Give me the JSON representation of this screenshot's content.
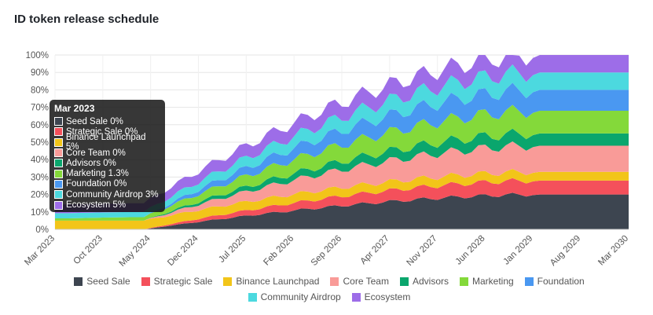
{
  "title": "ID token release schedule",
  "chart_data": {
    "type": "area",
    "stacked": true,
    "ylim": [
      0,
      100
    ],
    "yticks": [
      "0%",
      "10%",
      "20%",
      "30%",
      "40%",
      "50%",
      "60%",
      "70%",
      "80%",
      "90%",
      "100%"
    ],
    "xticks": [
      "Mar 2023",
      "Oct 2023",
      "May 2024",
      "Dec 2024",
      "Jul 2025",
      "Feb 2026",
      "Sep 2026",
      "Apr 2027",
      "Nov 2027",
      "Jun 2028",
      "Jan 2029",
      "Aug 2029",
      "Mar 2030"
    ],
    "x": [
      "Mar 2023",
      "May 2023",
      "Apr 2024",
      "Jan 2029",
      "Mar 2030"
    ],
    "series": [
      {
        "name": "Seed Sale",
        "color": "#3d4550",
        "values": [
          0,
          0,
          0,
          20,
          20
        ]
      },
      {
        "name": "Strategic Sale",
        "color": "#f4505b",
        "values": [
          0,
          0,
          0,
          8,
          8
        ]
      },
      {
        "name": "Binance Launchpad",
        "color": "#f2c519",
        "values": [
          5,
          5,
          5,
          5,
          5
        ]
      },
      {
        "name": "Core Team",
        "color": "#f99b98",
        "values": [
          0,
          0,
          0,
          15,
          15
        ]
      },
      {
        "name": "Advisors",
        "color": "#0aa66d",
        "values": [
          0,
          0,
          0,
          7,
          7
        ]
      },
      {
        "name": "Marketing",
        "color": "#84d93a",
        "values": [
          1.3,
          1.3,
          2,
          13,
          13
        ]
      },
      {
        "name": "Foundation",
        "color": "#4a98f1",
        "values": [
          0,
          0,
          0,
          12,
          12
        ]
      },
      {
        "name": "Community Airdrop",
        "color": "#4cd9df",
        "values": [
          3,
          3,
          3,
          10,
          10
        ]
      },
      {
        "name": "Ecosystem",
        "color": "#9d6de8",
        "values": [
          5,
          5,
          5,
          10,
          10
        ]
      }
    ],
    "legend_position": "bottom",
    "grid": true
  },
  "tooltip": {
    "title": "Mar 2023",
    "rows": [
      {
        "text": "Seed Sale 0%",
        "color": "#3d4550"
      },
      {
        "text": "Strategic Sale 0%",
        "color": "#f4505b"
      },
      {
        "text": "Binance Launchpad 5%",
        "color": "#f2c519"
      },
      {
        "text": "Core Team 0%",
        "color": "#f99b98"
      },
      {
        "text": "Advisors 0%",
        "color": "#0aa66d"
      },
      {
        "text": "Marketing 1.3%",
        "color": "#84d93a"
      },
      {
        "text": "Foundation 0%",
        "color": "#4a98f1"
      },
      {
        "text": "Community Airdrop 3%",
        "color": "#4cd9df"
      },
      {
        "text": "Ecosystem 5%",
        "color": "#9d6de8"
      }
    ]
  }
}
